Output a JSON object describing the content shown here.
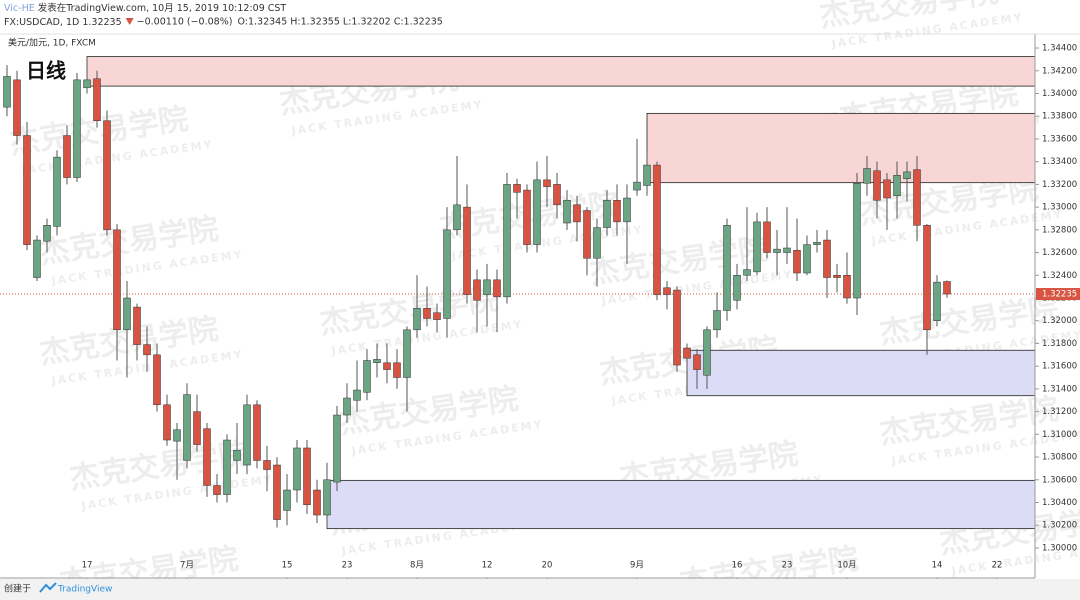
{
  "header": {
    "author": "Vic-HE",
    "published": "发表在TradingView.com, 10月 15, 2019 10:12:09 CST",
    "symbol_line": "FX:USDCAD, 1D 1.32235",
    "change": "−0.00110 (−0.08%)",
    "ohlc_line": "O:1.32345 H:1.32355 L:1.32202 C:1.32235"
  },
  "chart_data": {
    "type": "candlestick",
    "title": "美元/加元, 1D, FXCM",
    "annotation": "日线",
    "watermark": {
      "cn": "杰克交易学院",
      "en": "JACK TRADING ACADEMY"
    },
    "up_color": "#6ba583",
    "down_color": "#d75442",
    "categories": [
      null,
      null,
      null,
      null,
      null,
      null,
      null,
      null,
      "17",
      null,
      null,
      null,
      null,
      null,
      null,
      null,
      null,
      null,
      "7月",
      null,
      null,
      null,
      null,
      null,
      null,
      null,
      null,
      null,
      "15",
      null,
      null,
      null,
      null,
      null,
      "23",
      null,
      null,
      null,
      null,
      null,
      null,
      "8月",
      null,
      null,
      null,
      null,
      null,
      null,
      "12",
      null,
      null,
      null,
      null,
      null,
      "20",
      null,
      null,
      null,
      null,
      null,
      null,
      null,
      null,
      "9月",
      null,
      null,
      null,
      null,
      null,
      null,
      null,
      null,
      null,
      "16",
      null,
      null,
      null,
      null,
      "23",
      null,
      null,
      null,
      null,
      null,
      "10月",
      null,
      null,
      null,
      null,
      null,
      null,
      null,
      null,
      "14",
      null,
      null,
      null,
      null,
      null,
      "22"
    ],
    "open": [
      1.3388,
      1.3412,
      1.3363,
      1.3238,
      1.327,
      1.3283,
      1.3363,
      1.3326,
      1.3405,
      1.3413,
      1.3376,
      1.328,
      1.3192,
      1.3212,
      1.3179,
      1.317,
      1.3126,
      1.3094,
      1.3077,
      1.312,
      1.3105,
      1.3055,
      1.3047,
      1.3077,
      1.3073,
      1.3126,
      1.3077,
      1.3073,
      1.3033,
      1.3051,
      1.3088,
      1.3051,
      1.3029,
      1.3058,
      1.3117,
      1.313,
      1.3137,
      1.3163,
      1.3163,
      1.3163,
      1.315,
      1.3192,
      1.3211,
      1.3207,
      1.3202,
      1.328,
      1.33,
      1.3236,
      1.3223,
      1.3236,
      1.3221,
      1.332,
      1.3315,
      1.3267,
      1.3324,
      1.332,
      1.3286,
      1.3302,
      1.3297,
      1.3255,
      1.3282,
      1.3306,
      1.3287,
      1.3315,
      1.3319,
      1.3337,
      1.3229,
      1.3227,
      1.3176,
      1.317,
      1.3152,
      1.3192,
      1.3209,
      1.3218,
      1.324,
      1.3243,
      1.3287,
      1.326,
      1.326,
      1.3262,
      1.3242,
      1.3267,
      1.3271,
      1.324,
      1.324,
      1.322,
      1.3321,
      1.3332,
      1.3324,
      1.331,
      1.3325,
      1.3333,
      1.3284,
      1.32,
      1.32345,
      null,
      null,
      null,
      null,
      null
    ],
    "high": [
      1.3425,
      1.342,
      1.3375,
      1.3275,
      1.329,
      1.335,
      1.3372,
      1.3418,
      1.3432,
      1.342,
      1.3385,
      1.3285,
      1.3235,
      1.3215,
      1.3195,
      1.318,
      1.3135,
      1.311,
      1.3145,
      1.3135,
      1.311,
      1.3065,
      1.31,
      1.311,
      1.3135,
      1.313,
      1.309,
      1.308,
      1.3065,
      1.3095,
      1.3095,
      1.306,
      1.3075,
      1.3125,
      1.3145,
      1.3165,
      1.3175,
      1.318,
      1.318,
      1.3175,
      1.3195,
      1.324,
      1.323,
      1.3215,
      1.33,
      1.3345,
      1.332,
      1.3245,
      1.325,
      1.3245,
      1.333,
      1.3325,
      1.332,
      1.334,
      1.3345,
      1.333,
      1.3315,
      1.331,
      1.33,
      1.329,
      1.3315,
      1.332,
      1.332,
      1.336,
      1.335,
      1.334,
      1.3235,
      1.323,
      1.318,
      1.3175,
      1.3195,
      1.3225,
      1.329,
      1.325,
      1.33,
      1.3295,
      1.33,
      1.328,
      1.33,
      1.329,
      1.3275,
      1.328,
      1.328,
      1.325,
      1.326,
      1.333,
      1.3345,
      1.334,
      1.333,
      1.334,
      1.334,
      1.3345,
      1.3285,
      1.324,
      1.32355,
      null,
      null,
      null,
      null,
      null
    ],
    "low": [
      1.338,
      1.3355,
      1.3262,
      1.3235,
      1.326,
      1.3275,
      1.332,
      1.3322,
      1.34,
      1.337,
      1.3275,
      1.3165,
      1.315,
      1.3165,
      1.3155,
      1.312,
      1.309,
      1.306,
      1.307,
      1.3085,
      1.3045,
      1.304,
      1.304,
      1.3065,
      1.3065,
      1.307,
      1.305,
      1.3018,
      1.302,
      1.304,
      1.303,
      1.3022,
      1.3018,
      1.305,
      1.311,
      1.312,
      1.313,
      1.315,
      1.3145,
      1.314,
      1.312,
      1.3185,
      1.3195,
      1.319,
      1.3185,
      1.3275,
      1.3215,
      1.319,
      1.3195,
      1.319,
      1.3215,
      1.329,
      1.326,
      1.326,
      1.33,
      1.329,
      1.328,
      1.327,
      1.324,
      1.323,
      1.3275,
      1.3275,
      1.325,
      1.331,
      1.331,
      1.3218,
      1.321,
      1.3155,
      1.3155,
      1.314,
      1.314,
      1.3185,
      1.32,
      1.321,
      1.3235,
      1.324,
      1.3255,
      1.324,
      1.325,
      1.3235,
      1.324,
      1.326,
      1.322,
      1.3225,
      1.3215,
      1.3205,
      1.331,
      1.329,
      1.328,
      1.329,
      1.3305,
      1.327,
      1.317,
      1.3195,
      1.32202,
      null,
      null,
      null,
      null,
      null
    ],
    "close": [
      1.3415,
      1.3363,
      1.3267,
      1.3271,
      1.3284,
      1.3344,
      1.3326,
      1.3412,
      1.3412,
      1.3376,
      1.328,
      1.3192,
      1.322,
      1.3179,
      1.317,
      1.3126,
      1.3095,
      1.3104,
      1.3135,
      1.3091,
      1.3055,
      1.3047,
      1.3095,
      1.3086,
      1.3126,
      1.3077,
      1.3069,
      1.3025,
      1.3051,
      1.3088,
      1.3038,
      1.3029,
      1.306,
      1.3117,
      1.3132,
      1.3139,
      1.3165,
      1.3166,
      1.3157,
      1.315,
      1.3192,
      1.3211,
      1.3202,
      1.3201,
      1.328,
      1.3302,
      1.3223,
      1.3218,
      1.3236,
      1.3221,
      1.332,
      1.3313,
      1.3267,
      1.3324,
      1.3318,
      1.3302,
      1.3306,
      1.3287,
      1.3255,
      1.3282,
      1.3306,
      1.3287,
      1.3308,
      1.3322,
      1.3337,
      1.3223,
      1.3223,
      1.3161,
      1.3167,
      1.3157,
      1.3192,
      1.3209,
      1.3284,
      1.324,
      1.3245,
      1.3287,
      1.326,
      1.3263,
      1.3264,
      1.3242,
      1.3267,
      1.3269,
      1.3238,
      1.3238,
      1.322,
      1.3321,
      1.3334,
      1.3306,
      1.3308,
      1.3328,
      1.3331,
      1.3284,
      1.3192,
      1.3234,
      1.32235,
      null,
      null,
      null,
      null,
      null
    ],
    "zones": [
      {
        "start": 8,
        "low": 1.34065,
        "high": 1.34325,
        "color": "#f9d6d6"
      },
      {
        "start": 64,
        "low": 1.33215,
        "high": 1.33825,
        "color": "#f9d6d6"
      },
      {
        "start": 68,
        "low": 1.3134,
        "high": 1.3174,
        "color": "#dcdcf7"
      },
      {
        "start": 32,
        "low": 1.3017,
        "high": 1.30595,
        "color": "#dcdcf7"
      }
    ],
    "last_price": {
      "value": 1.32235,
      "label": "1.32235",
      "color": "#d75442"
    },
    "ylim": [
      1.29806,
      1.34506
    ],
    "yticks": [
      {
        "value": 1.3,
        "label": "1.30000"
      },
      {
        "value": 1.302,
        "label": "1.30200"
      },
      {
        "value": 1.304,
        "label": "1.30400"
      },
      {
        "value": 1.306,
        "label": "1.30600"
      },
      {
        "value": 1.308,
        "label": "1.30800"
      },
      {
        "value": 1.31,
        "label": "1.31000"
      },
      {
        "value": 1.312,
        "label": "1.31200"
      },
      {
        "value": 1.314,
        "label": "1.31400"
      },
      {
        "value": 1.316,
        "label": "1.31600"
      },
      {
        "value": 1.318,
        "label": "1.31800"
      },
      {
        "value": 1.32,
        "label": "1.32000"
      },
      {
        "value": 1.322,
        "label": "1.32200"
      },
      {
        "value": 1.324,
        "label": "1.32400"
      },
      {
        "value": 1.326,
        "label": "1.32600"
      },
      {
        "value": 1.328,
        "label": "1.32800"
      },
      {
        "value": 1.33,
        "label": "1.33000"
      },
      {
        "value": 1.332,
        "label": "1.33200"
      },
      {
        "value": 1.334,
        "label": "1.33400"
      },
      {
        "value": 1.336,
        "label": "1.33600"
      },
      {
        "value": 1.338,
        "label": "1.33800"
      },
      {
        "value": 1.34,
        "label": "1.34000"
      },
      {
        "value": 1.342,
        "label": "1.34200"
      },
      {
        "value": 1.344,
        "label": "1.34400"
      }
    ]
  },
  "footer": {
    "created": "创建于",
    "brand": "TradingView"
  }
}
